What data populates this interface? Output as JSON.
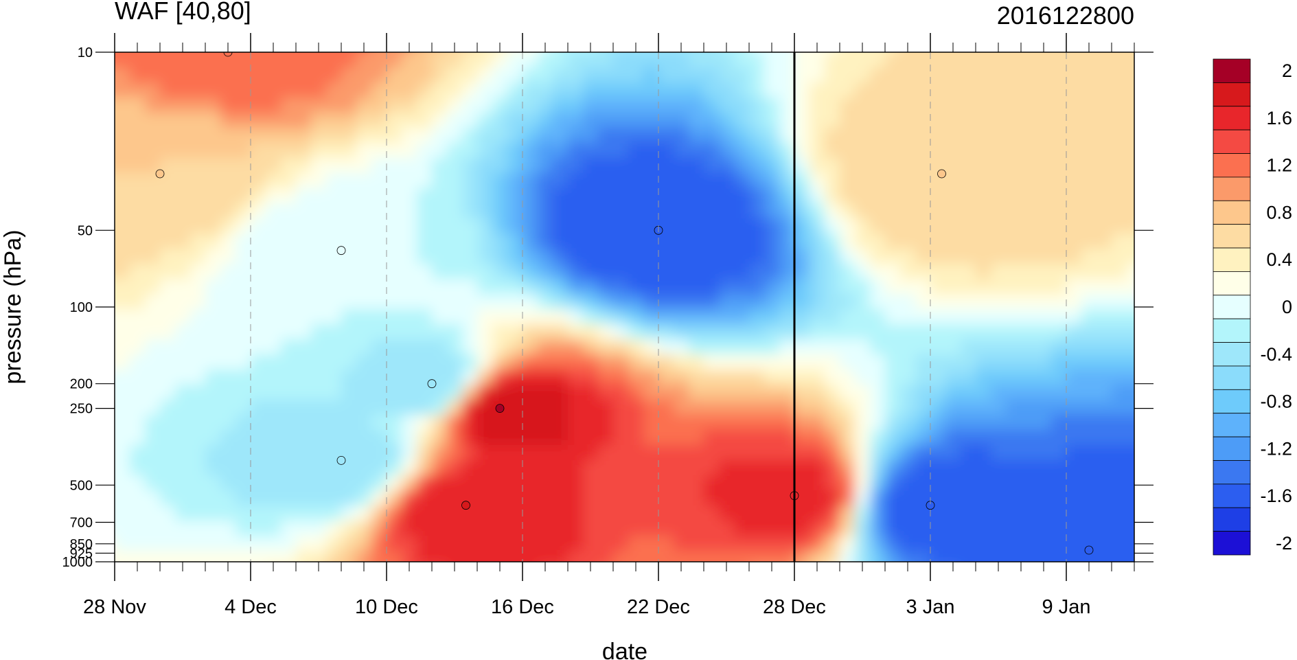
{
  "chart_data": {
    "type": "heatmap",
    "title_left": "WAF [40,80]",
    "title_right": "2016122800",
    "xlabel": "date",
    "ylabel": "pressure (hPa)",
    "x_ticks": [
      {
        "day": 0,
        "label": "28 Nov"
      },
      {
        "day": 6,
        "label": "4 Dec"
      },
      {
        "day": 12,
        "label": "10 Dec"
      },
      {
        "day": 18,
        "label": "16 Dec"
      },
      {
        "day": 24,
        "label": "22 Dec"
      },
      {
        "day": 30,
        "label": "28 Dec"
      },
      {
        "day": 36,
        "label": "3 Jan"
      },
      {
        "day": 42,
        "label": "9 Jan"
      }
    ],
    "x_range_days": [
      0,
      45
    ],
    "y_ticks": [
      {
        "p": 10,
        "label": "10"
      },
      {
        "p": 50,
        "label": "50"
      },
      {
        "p": 100,
        "label": "100"
      },
      {
        "p": 200,
        "label": "200"
      },
      {
        "p": 250,
        "label": "250"
      },
      {
        "p": 500,
        "label": "500"
      },
      {
        "p": 700,
        "label": "700"
      },
      {
        "p": 850,
        "label": "850"
      },
      {
        "p": 925,
        "label": "925"
      },
      {
        "p": 1000,
        "label": "1000"
      }
    ],
    "y_scale": "log",
    "y_range_hpa": [
      10,
      1000
    ],
    "current_date_line_day": 30,
    "colorbar": {
      "levels": [
        2,
        1.8,
        1.6,
        1.4,
        1.2,
        1.0,
        0.8,
        0.6,
        0.4,
        0.2,
        0,
        -0.2,
        -0.4,
        -0.6,
        -0.8,
        -1.0,
        -1.2,
        -1.4,
        -1.6,
        -1.8,
        -2
      ],
      "labels": [
        "2",
        "1.6",
        "1.2",
        "0.8",
        "0.4",
        "0",
        "-0.4",
        "-0.8",
        "-1.2",
        "-1.6",
        "-2"
      ],
      "colors": [
        "#a50026",
        "#d7191c",
        "#e8262b",
        "#f44a43",
        "#fb7050",
        "#fb9a6a",
        "#fdc78c",
        "#fddca3",
        "#fff2c0",
        "#ffffe8",
        "#e6ffff",
        "#b3f5fb",
        "#9ee7fa",
        "#8bdcfb",
        "#6ecbfb",
        "#5eb2fb",
        "#4d9cf7",
        "#3b78f1",
        "#2c5ef0",
        "#1e3fe6",
        "#1c10d6"
      ]
    },
    "features": [
      {
        "day": 17,
        "p": 250,
        "value": 2.0
      },
      {
        "day": 15.5,
        "p": 600,
        "value": 1.8
      },
      {
        "day": 30,
        "p": 550,
        "value": 1.7
      },
      {
        "day": 5,
        "p": 10,
        "value": 1.3
      },
      {
        "day": 36.5,
        "p": 30,
        "value": 0.8
      },
      {
        "day": 2,
        "p": 30,
        "value": 0.8
      },
      {
        "day": 24,
        "p": 50,
        "value": -1.6
      },
      {
        "day": 36,
        "p": 600,
        "value": -1.6
      },
      {
        "day": 43,
        "p": 900,
        "value": -1.6
      },
      {
        "day": 14,
        "p": 200,
        "value": -0.4
      },
      {
        "day": 10,
        "p": 400,
        "value": -0.4
      },
      {
        "day": 10,
        "p": 60,
        "value": 0.0
      }
    ]
  }
}
